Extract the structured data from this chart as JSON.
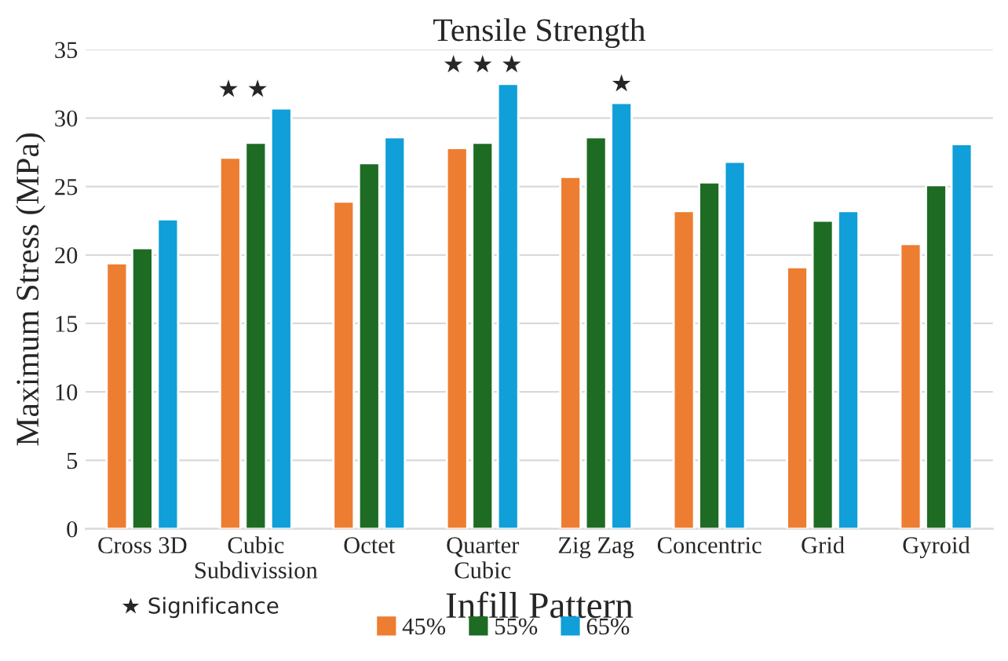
{
  "chart_data": {
    "type": "bar",
    "title": "Tensile Strength",
    "xlabel": "Infill Pattern",
    "ylabel": "Maximum Stress (MPa)",
    "categories": [
      "Cross 3D",
      "Cubic\nSubdivission",
      "Octet",
      "Quarter\nCubic",
      "Zig Zag",
      "Concentric",
      "Grid",
      "Gyroid"
    ],
    "series": [
      {
        "name": "45%",
        "color": "#ed7d31",
        "values": [
          19.4,
          27.1,
          23.9,
          27.8,
          25.7,
          23.2,
          19.1,
          20.8
        ]
      },
      {
        "name": "55%",
        "color": "#1e6b24",
        "values": [
          20.5,
          28.2,
          26.7,
          28.2,
          28.6,
          25.3,
          22.5,
          25.1
        ]
      },
      {
        "name": "65%",
        "color": "#109fd8",
        "values": [
          22.6,
          30.7,
          28.6,
          32.5,
          31.1,
          26.8,
          23.2,
          28.1
        ]
      }
    ],
    "ylim": [
      0,
      35
    ],
    "yticks": [
      0,
      5,
      10,
      15,
      20,
      25,
      30,
      35
    ],
    "grid": "y",
    "legend": "bottom",
    "annotations": [
      "★ ★",
      "★ ★ ★",
      "★",
      "★ Significance"
    ]
  }
}
